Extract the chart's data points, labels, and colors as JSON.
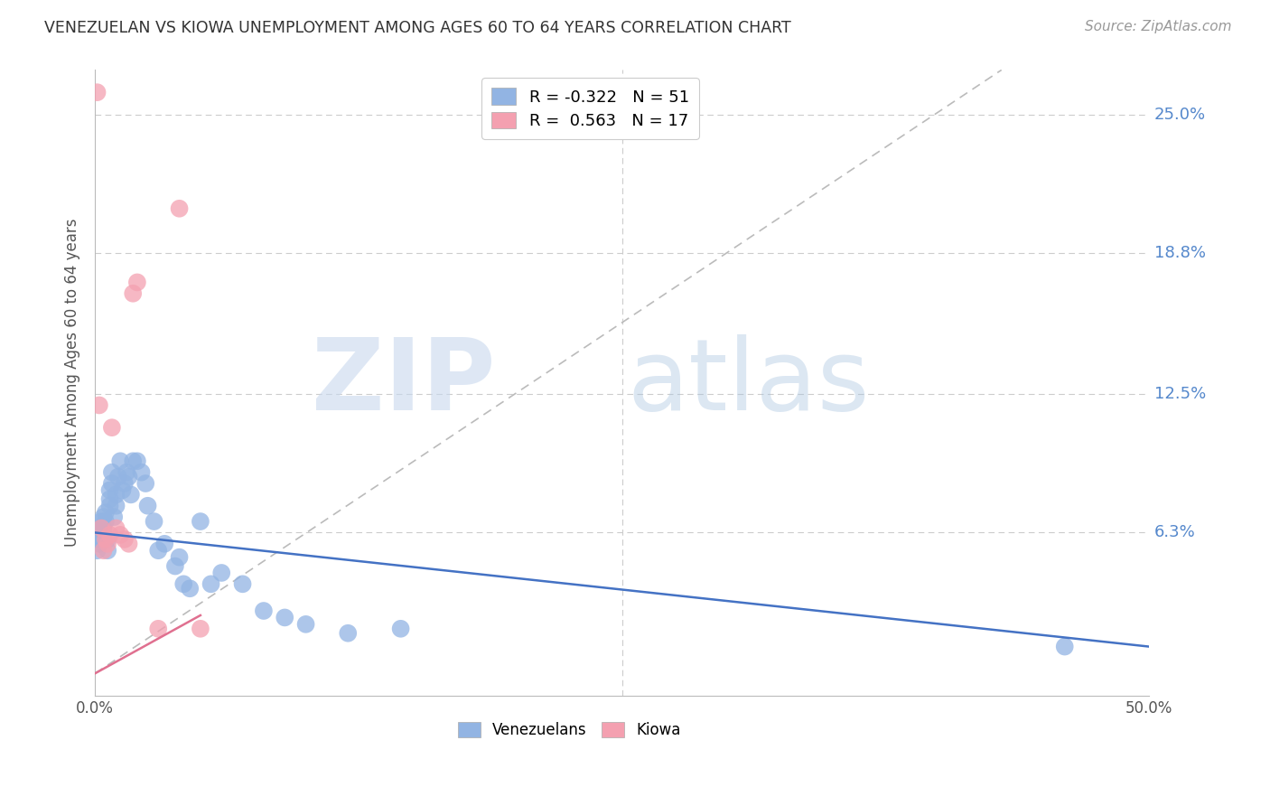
{
  "title": "VENEZUELAN VS KIOWA UNEMPLOYMENT AMONG AGES 60 TO 64 YEARS CORRELATION CHART",
  "source": "Source: ZipAtlas.com",
  "ylabel": "Unemployment Among Ages 60 to 64 years",
  "xlim": [
    0.0,
    0.5
  ],
  "ylim": [
    -0.01,
    0.27
  ],
  "venezuelan_color": "#92B4E3",
  "kiowa_color": "#F4A0B0",
  "venezuelan_line_color": "#4472C4",
  "kiowa_line_color": "#E07090",
  "ref_line_color": "#BBBBBB",
  "venezuelan_R": -0.322,
  "venezuelan_N": 51,
  "kiowa_R": 0.563,
  "kiowa_N": 17,
  "venezuelan_trend": [
    0.063,
    0.012
  ],
  "kiowa_trend": [
    0.0,
    0.52
  ],
  "ven_x": [
    0.001,
    0.001,
    0.002,
    0.002,
    0.003,
    0.003,
    0.003,
    0.004,
    0.004,
    0.004,
    0.005,
    0.005,
    0.006,
    0.006,
    0.007,
    0.007,
    0.007,
    0.008,
    0.008,
    0.009,
    0.01,
    0.01,
    0.011,
    0.012,
    0.013,
    0.014,
    0.015,
    0.016,
    0.017,
    0.018,
    0.02,
    0.022,
    0.024,
    0.025,
    0.028,
    0.03,
    0.033,
    0.038,
    0.04,
    0.042,
    0.045,
    0.05,
    0.055,
    0.06,
    0.07,
    0.08,
    0.09,
    0.1,
    0.12,
    0.145,
    0.46
  ],
  "ven_y": [
    0.06,
    0.055,
    0.062,
    0.058,
    0.068,
    0.065,
    0.06,
    0.07,
    0.065,
    0.06,
    0.072,
    0.068,
    0.055,
    0.06,
    0.082,
    0.078,
    0.075,
    0.09,
    0.085,
    0.07,
    0.08,
    0.075,
    0.088,
    0.095,
    0.082,
    0.085,
    0.09,
    0.088,
    0.08,
    0.095,
    0.095,
    0.09,
    0.085,
    0.075,
    0.068,
    0.055,
    0.058,
    0.048,
    0.052,
    0.04,
    0.038,
    0.068,
    0.04,
    0.045,
    0.04,
    0.028,
    0.025,
    0.022,
    0.018,
    0.02,
    0.012
  ],
  "kiowa_x": [
    0.001,
    0.002,
    0.003,
    0.004,
    0.005,
    0.006,
    0.007,
    0.008,
    0.01,
    0.012,
    0.014,
    0.016,
    0.018,
    0.02,
    0.03,
    0.04,
    0.05
  ],
  "kiowa_y": [
    0.26,
    0.12,
    0.065,
    0.055,
    0.06,
    0.058,
    0.062,
    0.11,
    0.065,
    0.062,
    0.06,
    0.058,
    0.17,
    0.175,
    0.02,
    0.208,
    0.02
  ]
}
